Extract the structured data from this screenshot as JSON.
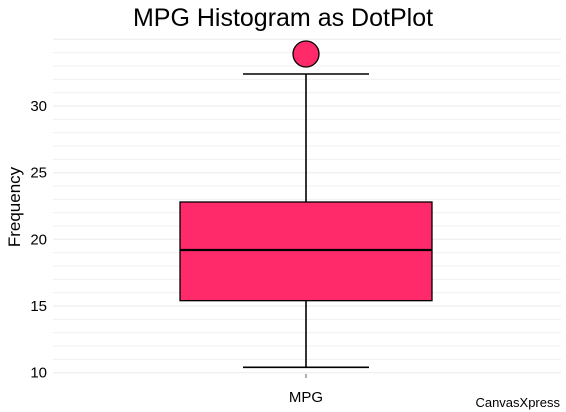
{
  "chart_data": {
    "type": "box",
    "title": "MPG Histogram as DotPlot",
    "xlabel": "",
    "ylabel": "Frequency",
    "categories": [
      "MPG"
    ],
    "y_ticks": [
      10,
      15,
      20,
      25,
      30
    ],
    "ylim": [
      9.9,
      35.1
    ],
    "grid": true,
    "series": [
      {
        "values": [
          {
            "category": "MPG",
            "min": 10.4,
            "q1": 15.4,
            "median": 19.2,
            "q3": 22.8,
            "max": 32.4,
            "outliers": [
              33.9
            ]
          }
        ]
      }
    ],
    "colors": {
      "box_fill": "#FF2A6A",
      "outline": "#000000",
      "grid": "#EEEEEE"
    }
  },
  "watermark": "CanvasXpress"
}
